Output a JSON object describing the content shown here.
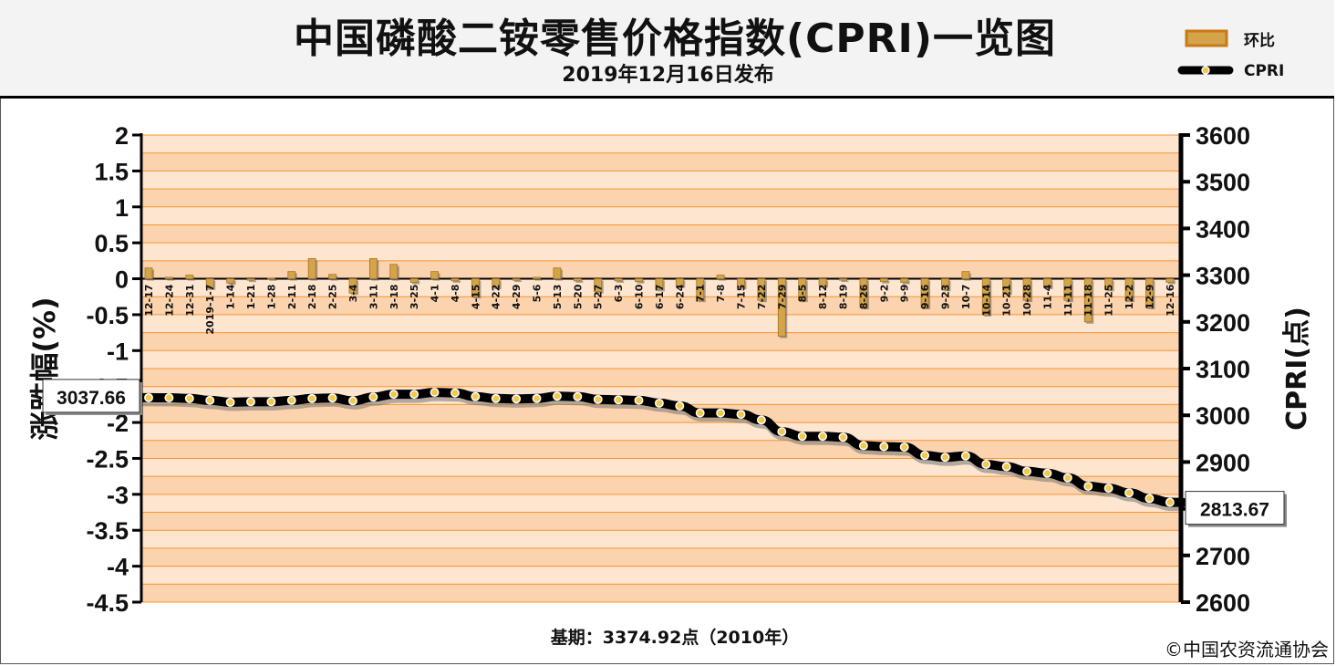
{
  "header": {
    "title": "中国磷酸二铵零售价格指数(CPRI)一览图",
    "subtitle": "2019年12月16日发布"
  },
  "legend": {
    "bar_label": "环比",
    "line_label": "CPRI"
  },
  "footer": {
    "base_period": "基期：3374.92点（2010年）",
    "copyright": "©中国农资流通协会"
  },
  "colors": {
    "band_light": "#fde5cf",
    "band_dark": "#fbd3ae",
    "grid_line": "#f7942e",
    "bar_fill": "#d4a34a",
    "line_color": "#000000",
    "marker_fill": "#f2c94c"
  },
  "chart_data": {
    "type": "bar+line",
    "left_axis": {
      "label": "涨跌幅(%)",
      "ylim": [
        -4.5,
        2
      ],
      "ticks": [
        "2",
        "1.5",
        "1",
        "0.5",
        "0",
        "-0.5",
        "-1",
        "-1.5",
        "-2",
        "-2.5",
        "-3",
        "-3.5",
        "-4",
        "-4.5"
      ]
    },
    "right_axis": {
      "label": "CPRI(点)",
      "ylim": [
        2600,
        3600
      ],
      "ticks": [
        "3600",
        "3500",
        "3400",
        "3300",
        "3200",
        "3100",
        "3000",
        "2900",
        "2800",
        "2700",
        "2600"
      ]
    },
    "categories": [
      "12-17",
      "12-24",
      "12-31",
      "2019-1-7",
      "1-14",
      "1-21",
      "1-28",
      "2-11",
      "2-18",
      "2-25",
      "3-4",
      "3-11",
      "3-18",
      "3-25",
      "4-1",
      "4-8",
      "4-15",
      "4-22",
      "4-29",
      "5-6",
      "5-13",
      "5-20",
      "5-27",
      "6-3",
      "6-10",
      "6-17",
      "6-24",
      "7-1",
      "7-8",
      "7-15",
      "7-22",
      "7-29",
      "8-5",
      "8-12",
      "8-19",
      "8-26",
      "9-2",
      "9-9",
      "9-16",
      "9-23",
      "10-7",
      "10-14",
      "10-21",
      "10-28",
      "11-4",
      "11-11",
      "11-18",
      "11-25",
      "12-2",
      "12-9",
      "12-16"
    ],
    "series": [
      {
        "name": "环比",
        "type": "bar",
        "axis": "left",
        "values": [
          0.15,
          0.02,
          0.05,
          -0.13,
          -0.06,
          -0.02,
          0.01,
          0.1,
          0.28,
          0.06,
          -0.2,
          0.28,
          0.2,
          -0.05,
          0.1,
          -0.03,
          -0.25,
          -0.12,
          -0.02,
          0.02,
          0.15,
          -0.03,
          -0.18,
          -0.03,
          -0.04,
          -0.15,
          -0.1,
          -0.3,
          0.05,
          -0.12,
          -0.3,
          -0.8,
          -0.3,
          -0.1,
          -0.02,
          -0.4,
          -0.04,
          -0.05,
          -0.4,
          -0.15,
          0.1,
          -0.5,
          -0.2,
          -0.3,
          -0.12,
          -0.3,
          -0.6,
          -0.15,
          -0.3,
          -0.4,
          -0.05
        ]
      },
      {
        "name": "CPRI",
        "type": "line",
        "axis": "right",
        "values": [
          3037.66,
          3037.5,
          3036,
          3032,
          3028,
          3029,
          3029,
          3032,
          3036,
          3037,
          3031,
          3039,
          3045,
          3045,
          3049,
          3048,
          3040,
          3036,
          3035,
          3036,
          3041,
          3040,
          3034,
          3033,
          3032,
          3026,
          3020,
          3005,
          3005,
          3002,
          2990,
          2965,
          2955,
          2955,
          2953,
          2935,
          2933,
          2932,
          2914,
          2910,
          2913,
          2895,
          2890,
          2880,
          2876,
          2866,
          2848,
          2844,
          2834,
          2822,
          2813.67
        ]
      }
    ],
    "annotations": [
      "3037.66",
      "2813.67"
    ],
    "grid": true,
    "legend_position": "top-right"
  }
}
